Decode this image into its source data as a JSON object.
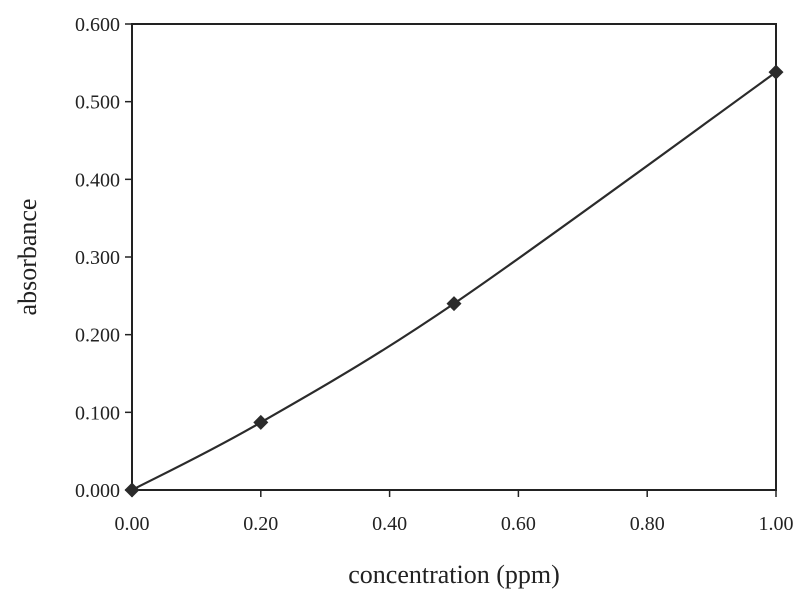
{
  "chart_data": {
    "type": "line",
    "title": "",
    "xlabel": "concentration (ppm)",
    "ylabel": "absorbance",
    "xlim": [
      0,
      1.0
    ],
    "ylim": [
      0,
      0.6
    ],
    "x_ticks": [
      "0.00",
      "0.20",
      "0.40",
      "0.60",
      "0.80",
      "1.00"
    ],
    "y_ticks": [
      "0.000",
      "0.100",
      "0.200",
      "0.300",
      "0.400",
      "0.500",
      "0.600"
    ],
    "x_tick_values": [
      0,
      0.2,
      0.4,
      0.6,
      0.8,
      1.0
    ],
    "y_tick_values": [
      0,
      0.1,
      0.2,
      0.3,
      0.4,
      0.5,
      0.6
    ],
    "grid": false,
    "legend": "none",
    "marker": "diamond",
    "colors": {
      "line": "#2b2b2b",
      "marker": "#2b2b2b",
      "frame": "#222222"
    },
    "series": [
      {
        "x": [
          0.0,
          0.2,
          0.5,
          1.0
        ],
        "y": [
          0.0,
          0.087,
          0.24,
          0.538
        ]
      }
    ]
  }
}
